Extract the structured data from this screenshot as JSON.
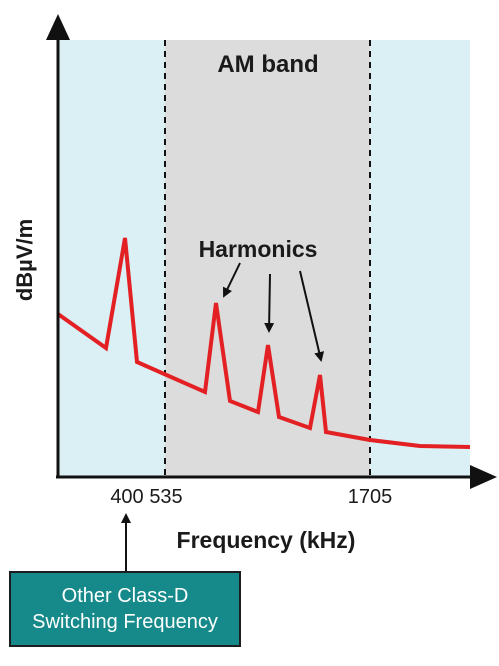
{
  "band_label": "AM band",
  "y_axis_label": "dBµV/m",
  "x_axis_label": "Frequency (kHz)",
  "harmonics_label": "Harmonics",
  "tick_labels": [
    "400",
    "535",
    "1705"
  ],
  "callout": {
    "line1": "Other Class-D",
    "line2": "Switching Frequency"
  },
  "colors": {
    "outer_background": "#daf0f5",
    "band_background": "#dcdcdc",
    "signal_line": "#e32124",
    "callout_fill": "#168a8a",
    "axis": "#111111"
  }
}
